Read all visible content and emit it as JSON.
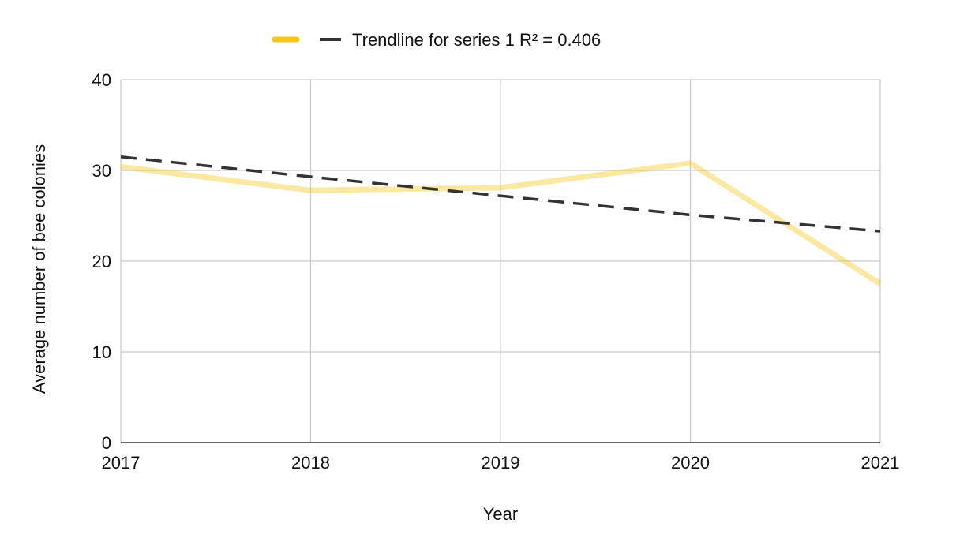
{
  "chart_data": {
    "type": "line",
    "title": "",
    "xlabel": "Year",
    "ylabel": "Average number of bee colonies",
    "x": [
      "2017",
      "2018",
      "2019",
      "2020",
      "2021"
    ],
    "ylim": [
      0,
      40
    ],
    "yticks": [
      "0",
      "10",
      "20",
      "30",
      "40"
    ],
    "grid": true,
    "legend_position": "top",
    "series": [
      {
        "name": "",
        "values": [
          30.4,
          27.8,
          28.1,
          30.8,
          17.5
        ],
        "color": "#f5c518",
        "line_opacity": 0.4
      }
    ],
    "trendline": {
      "name": "Trendline for series 1 R² = 0.406",
      "values": [
        31.5,
        29.3,
        27.2,
        25.1,
        23.3
      ],
      "color": "#333333",
      "style": "dashed"
    }
  }
}
